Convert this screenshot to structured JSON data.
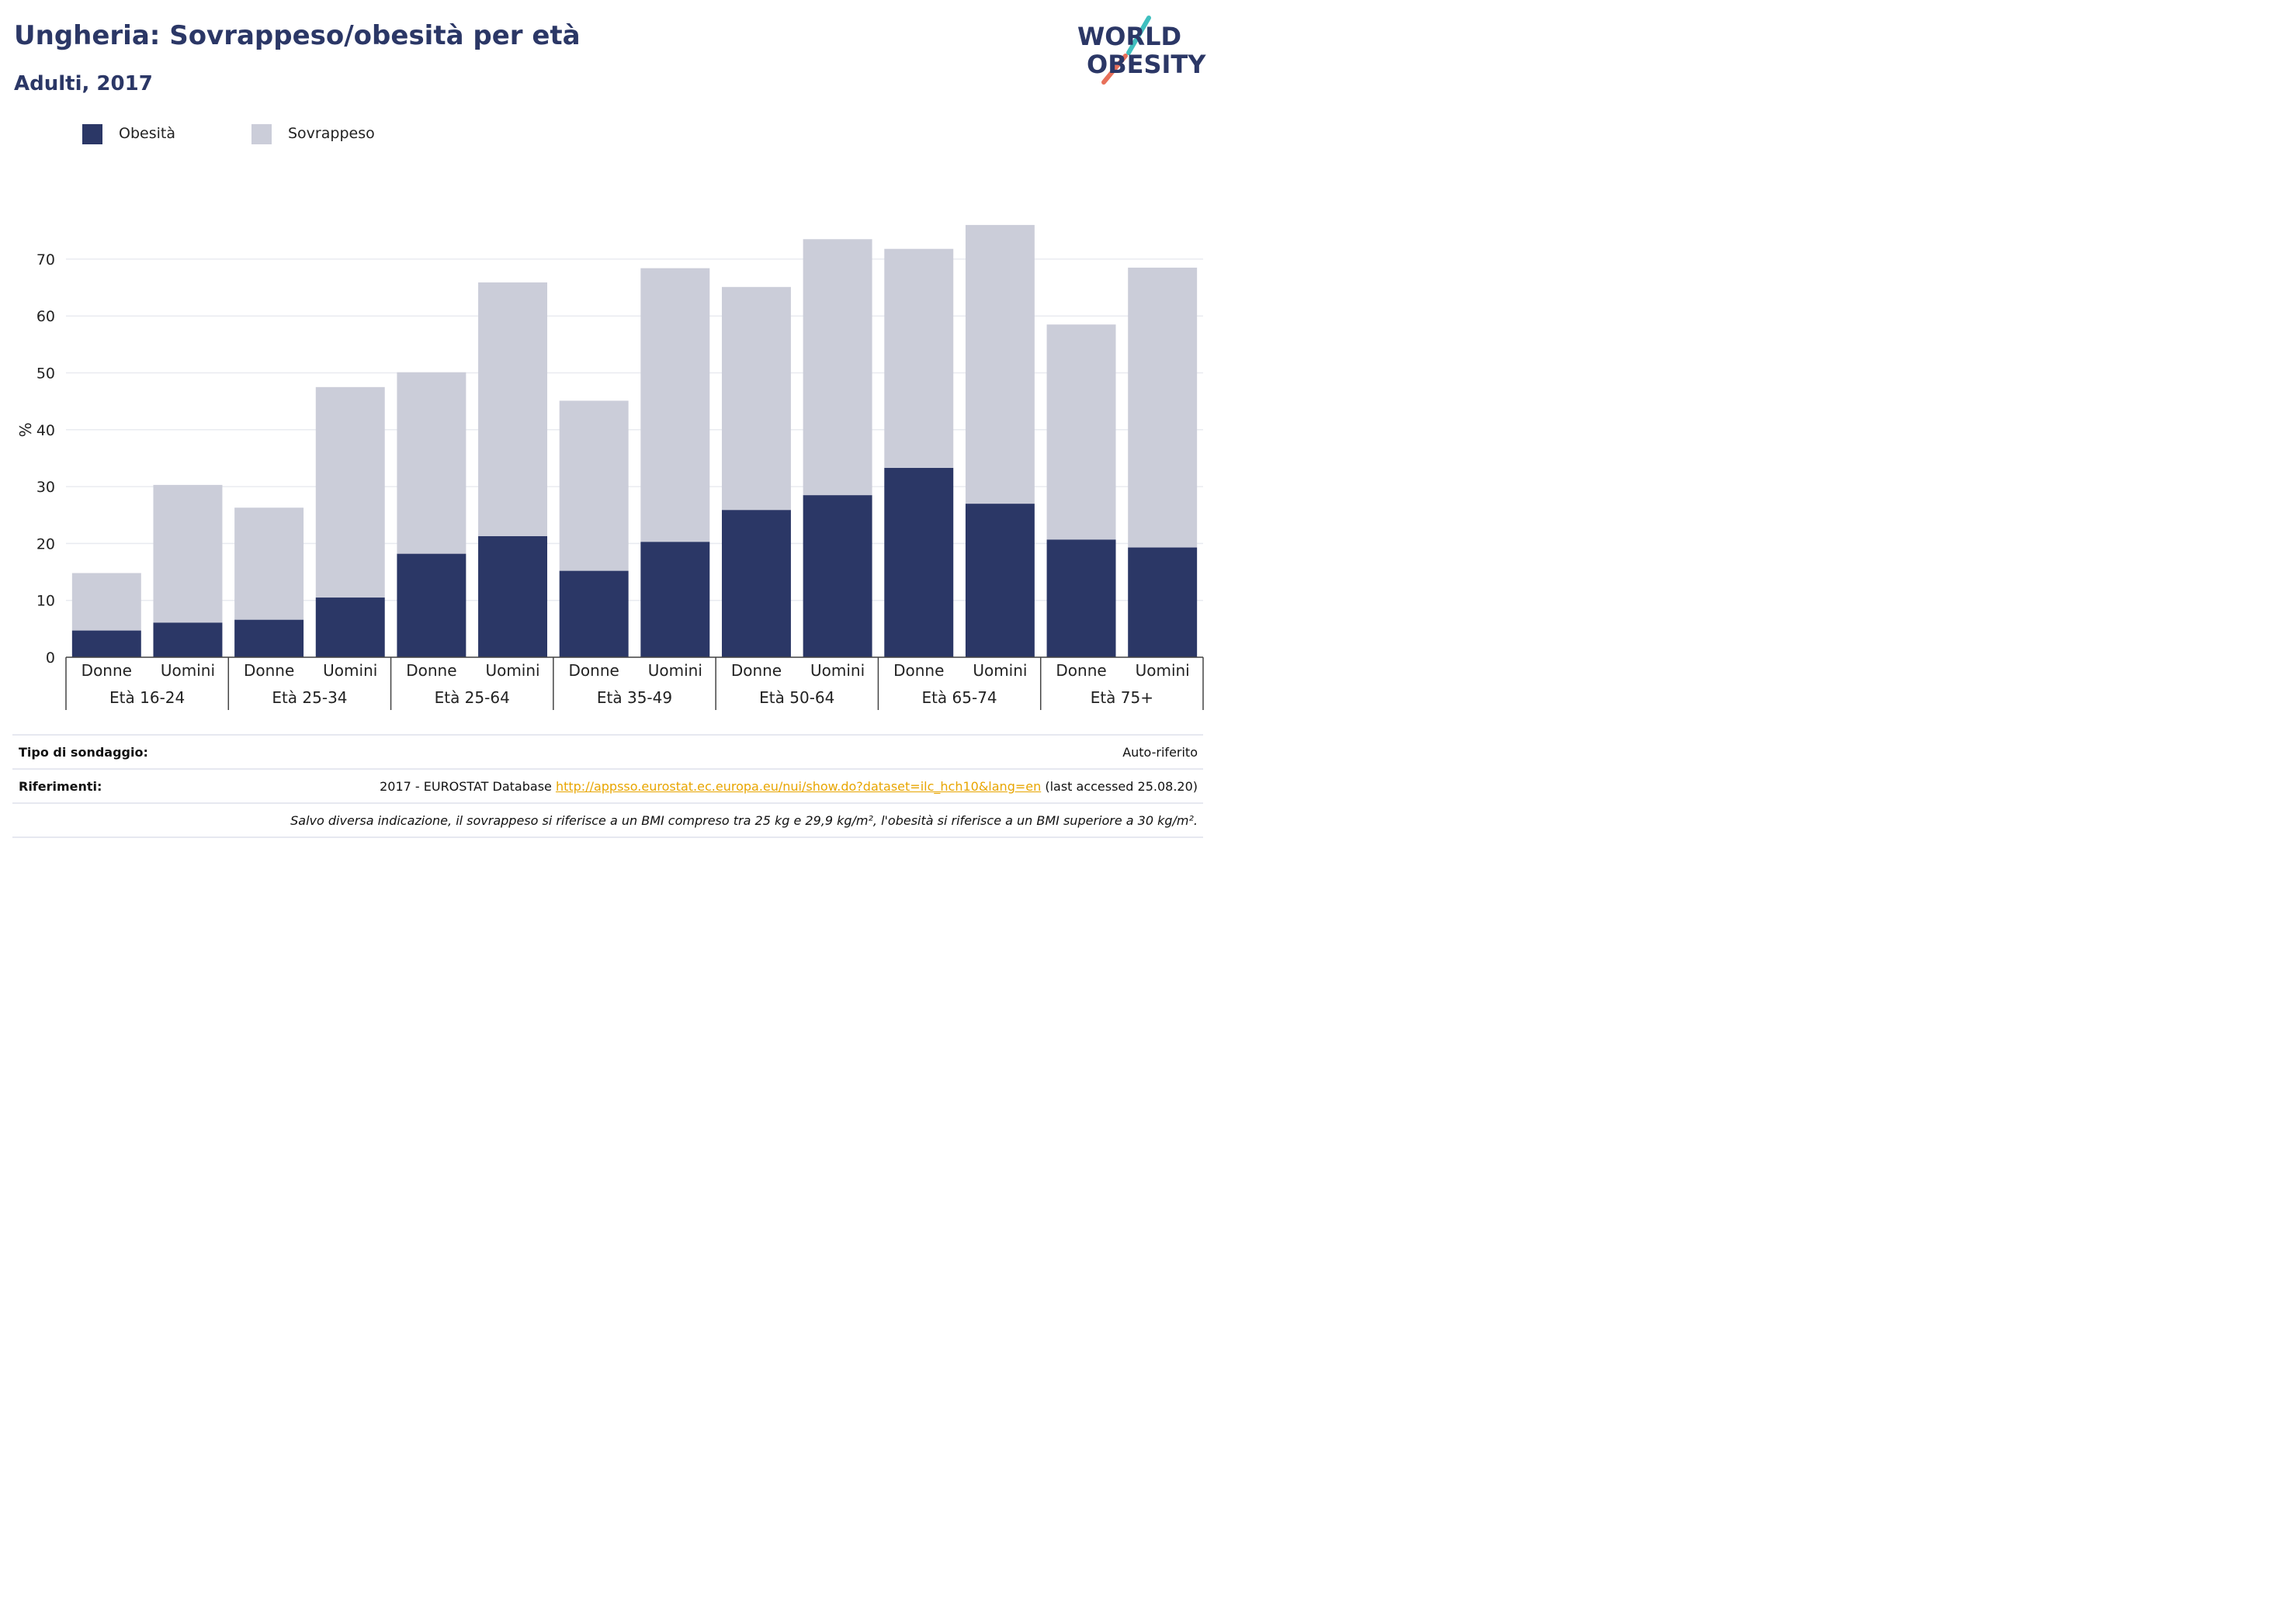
{
  "header": {
    "title": "Ungheria: Sovrappeso/obesità per età",
    "subtitle": "Adulti, 2017"
  },
  "logo": {
    "line1": "WORLD",
    "line2": "OBESITY"
  },
  "colors": {
    "obesity": "#2b3766",
    "overweight": "#cbcdd9",
    "title": "#2b3766",
    "link": "#e8a500",
    "logo_slash_teal": "#3fbfbf",
    "logo_slash_coral": "#e8705a"
  },
  "chart_data": {
    "type": "bar",
    "stacked": true,
    "ylabel": "%",
    "ylim": [
      0,
      77
    ],
    "yticks": [
      0,
      10,
      20,
      30,
      40,
      50,
      60,
      70
    ],
    "grid": true,
    "legend_position": "top-left",
    "categories": [
      "Donne",
      "Uomini",
      "Donne",
      "Uomini",
      "Donne",
      "Uomini",
      "Donne",
      "Uomini",
      "Donne",
      "Uomini",
      "Donne",
      "Uomini",
      "Donne",
      "Uomini"
    ],
    "groups": [
      "Età 16-24",
      "Età 25-34",
      "Età 25-64",
      "Età 35-49",
      "Età 50-64",
      "Età 65-74",
      "Età 75+"
    ],
    "series": [
      {
        "name": "Obesità",
        "values": [
          4.7,
          6.1,
          6.6,
          10.5,
          18.2,
          21.3,
          15.2,
          20.3,
          25.9,
          28.5,
          33.3,
          27.0,
          20.7,
          19.3
        ]
      },
      {
        "name": "Sovrappeso",
        "values": [
          10.1,
          24.2,
          19.7,
          37.0,
          31.9,
          44.6,
          29.9,
          48.1,
          39.2,
          45.0,
          38.5,
          49.0,
          37.8,
          49.2
        ]
      }
    ]
  },
  "footer": {
    "survey_label": "Tipo di sondaggio:",
    "survey_value": "Auto-riferito",
    "refs_label": "Riferimenti:",
    "refs_prefix": "2017 - EUROSTAT Database ",
    "refs_link": "http://appsso.eurostat.ec.europa.eu/nui/show.do?dataset=ilc_hch10&lang=en",
    "refs_suffix": " (last accessed 25.08.20)",
    "note": "Salvo diversa indicazione, il sovrappeso si riferisce a un BMI compreso tra 25 kg e 29,9 kg/m², l'obesità si riferisce a un BMI superiore a 30 kg/m²."
  }
}
